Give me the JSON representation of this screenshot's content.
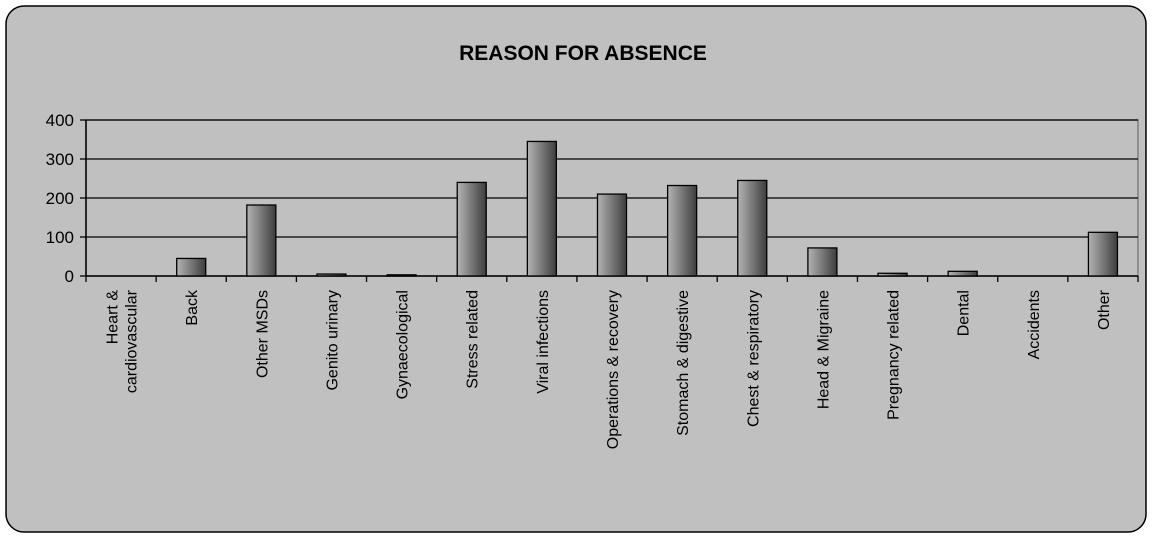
{
  "chart_data": {
    "type": "bar",
    "title": "REASON FOR ABSENCE",
    "xlabel": "",
    "ylabel": "",
    "ylim": [
      0,
      400
    ],
    "yticks": [
      0,
      100,
      200,
      300,
      400
    ],
    "grid": true,
    "legend": "none",
    "categories": [
      [
        "Heart &",
        "cardiovascular"
      ],
      [
        "Back"
      ],
      [
        "Other MSDs"
      ],
      [
        "Genito urinary"
      ],
      [
        "Gynaecological"
      ],
      [
        "Stress related"
      ],
      [
        "Viral infections"
      ],
      [
        "Operations & recovery"
      ],
      [
        "Stomach & digestive"
      ],
      [
        "Chest & respiratory"
      ],
      [
        "Head & Migraine"
      ],
      [
        "Pregnancy related"
      ],
      [
        "Dental"
      ],
      [
        "Accidents"
      ],
      [
        "Other"
      ]
    ],
    "values": [
      0,
      45,
      182,
      5,
      3,
      240,
      345,
      210,
      232,
      245,
      72,
      7,
      12,
      0,
      112
    ],
    "colors": {
      "background": "#c0c0c0",
      "bar_light": "#b3b3b3",
      "bar_dark": "#3d3d3d",
      "frame": "#000000"
    }
  }
}
